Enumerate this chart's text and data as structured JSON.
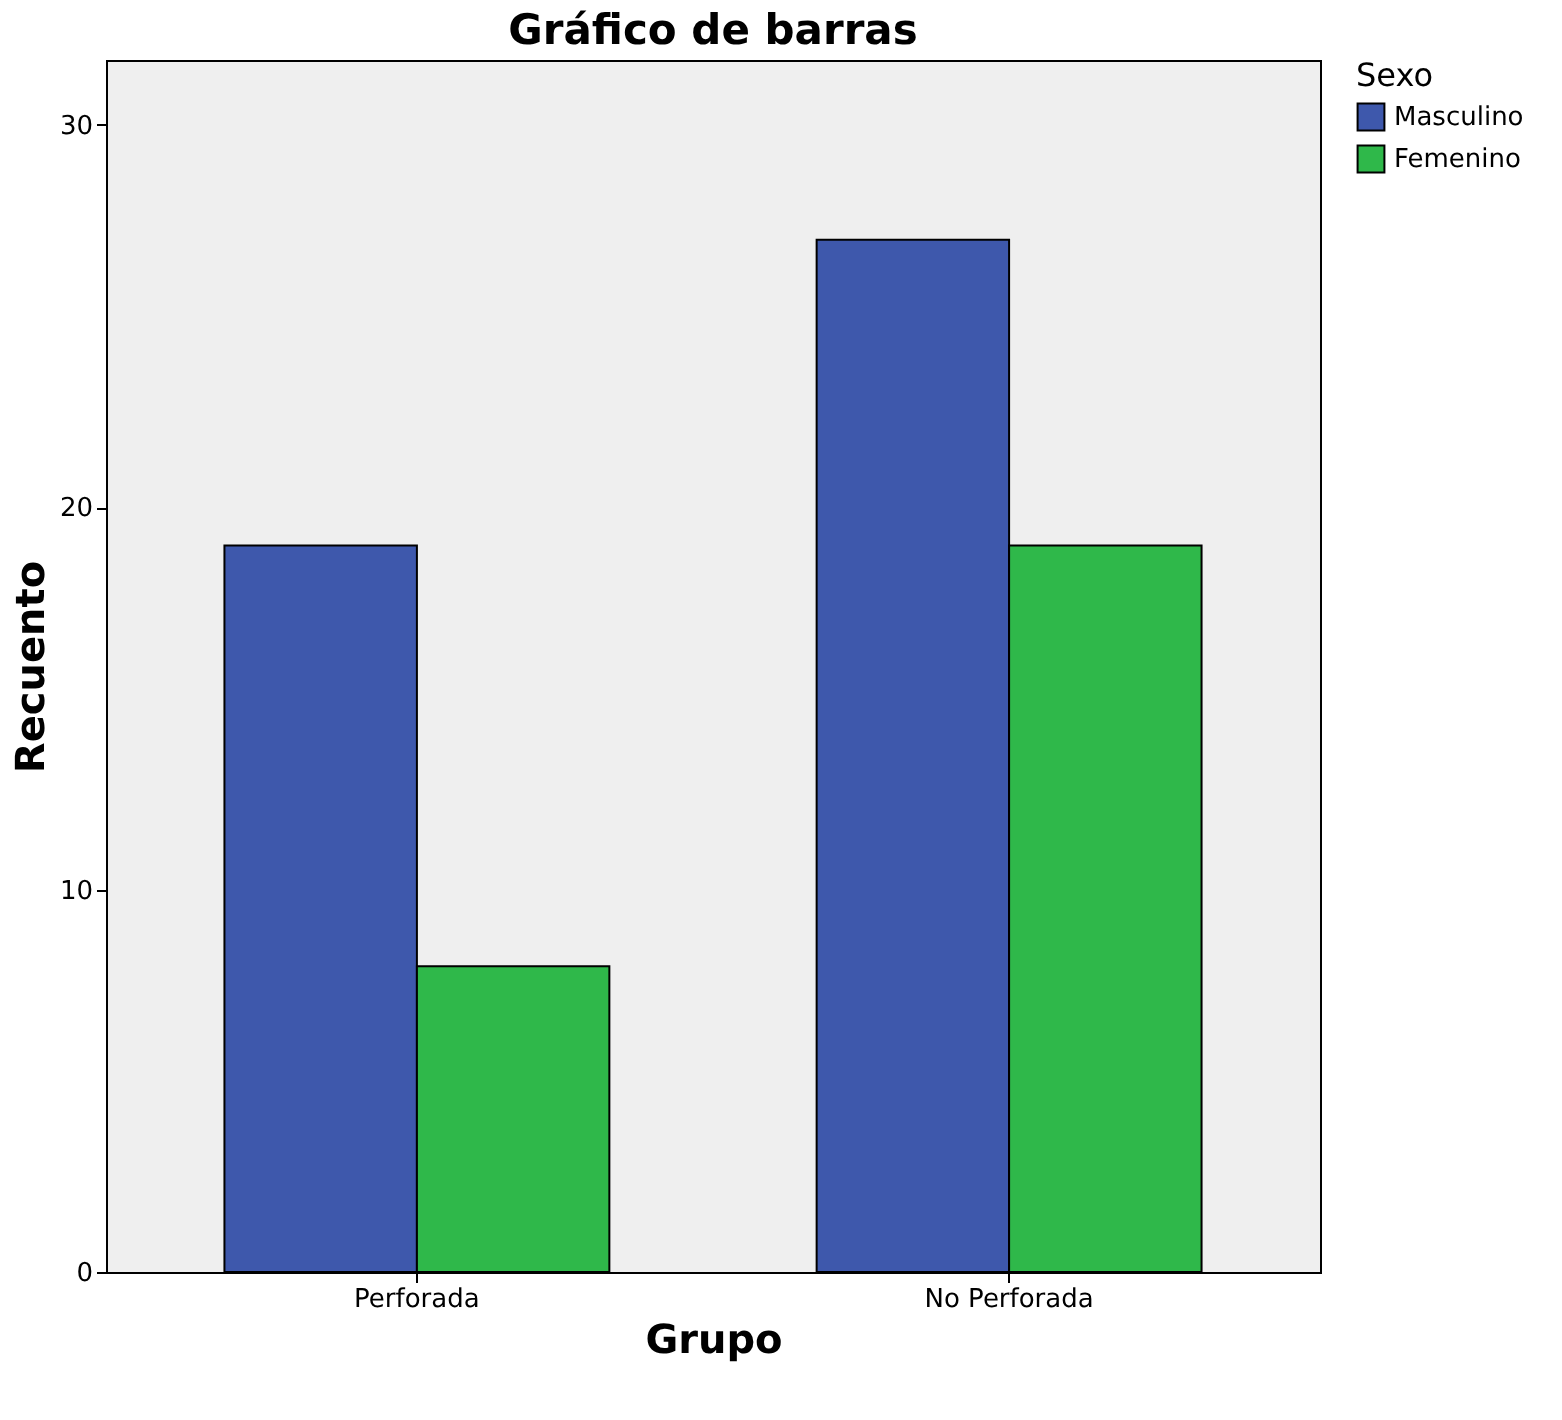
{
  "chart_data": {
    "type": "bar",
    "title": "Gráfico de barras",
    "xlabel": "Grupo",
    "ylabel": "Recuento",
    "legend_title": "Sexo",
    "categories": [
      "Perforada",
      "No Perforada"
    ],
    "series": [
      {
        "name": "Masculino",
        "color": "#3e58ac",
        "values": [
          19,
          27
        ]
      },
      {
        "name": "Femenino",
        "color": "#2fb84a",
        "values": [
          8,
          19
        ]
      }
    ],
    "ylim": [
      0,
      31.7
    ],
    "yticks": [
      0,
      10,
      20,
      30
    ],
    "grid": false,
    "legend": "top right"
  }
}
